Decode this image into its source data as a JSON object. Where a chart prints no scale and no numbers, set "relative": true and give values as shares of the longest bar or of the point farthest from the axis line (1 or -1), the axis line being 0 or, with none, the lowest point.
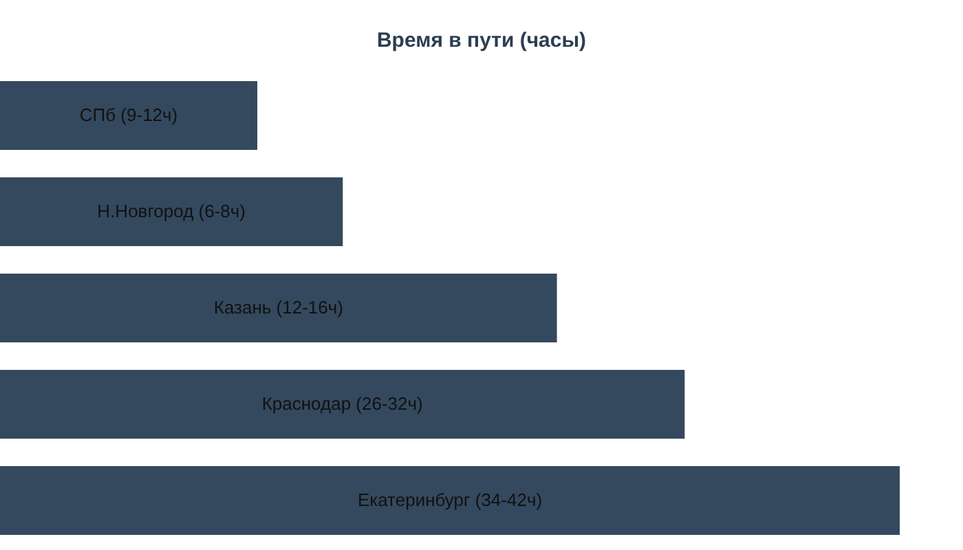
{
  "chart_data": {
    "type": "bar",
    "orientation": "horizontal",
    "relative": true,
    "title": "Время в пути (часы)",
    "categories": [
      "СПб (9-12ч)",
      "Н.Новгород (6-8ч)",
      "Казань (12-16ч)",
      "Краснодар (26-32ч)",
      "Екатеринбург (34-42ч)"
    ],
    "values": [
      0.286,
      0.381,
      0.619,
      0.761,
      1
    ],
    "color": "#34495e"
  }
}
